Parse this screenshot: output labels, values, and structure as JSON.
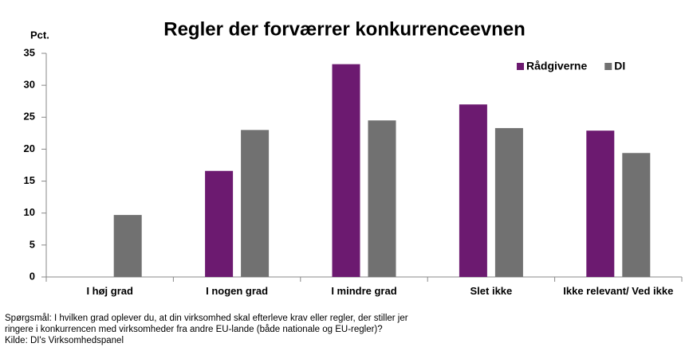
{
  "chart_data": {
    "type": "bar",
    "title": "Regler der forværrer konkurrenceevnen",
    "y_label": "Pct.",
    "categories": [
      "I høj grad",
      "I nogen grad",
      "I mindre grad",
      "Slet ikke",
      "Ikke relevant/ Ved ikke"
    ],
    "series": [
      {
        "name": "Rådgiverne",
        "color": "#6c1a70",
        "values": [
          0,
          16.6,
          33.3,
          27.0,
          22.9
        ]
      },
      {
        "name": "DI",
        "color": "#717171",
        "values": [
          9.7,
          23.0,
          24.5,
          23.3,
          19.4
        ]
      }
    ],
    "ylim": [
      0,
      35
    ],
    "yticks": [
      0,
      5,
      10,
      15,
      20,
      25,
      30,
      35
    ],
    "grid": false,
    "legend": "top-right",
    "notes": [
      "Spørgsmål: I hvilken grad oplever du, at din virksomhed skal efterleve krav eller regler, der stiller jer",
      "ringere i konkurrencen med virksomheder fra andre EU-lande (både nationale og EU-regler)?",
      "Kilde: DI's Virksomhedspanel"
    ]
  }
}
